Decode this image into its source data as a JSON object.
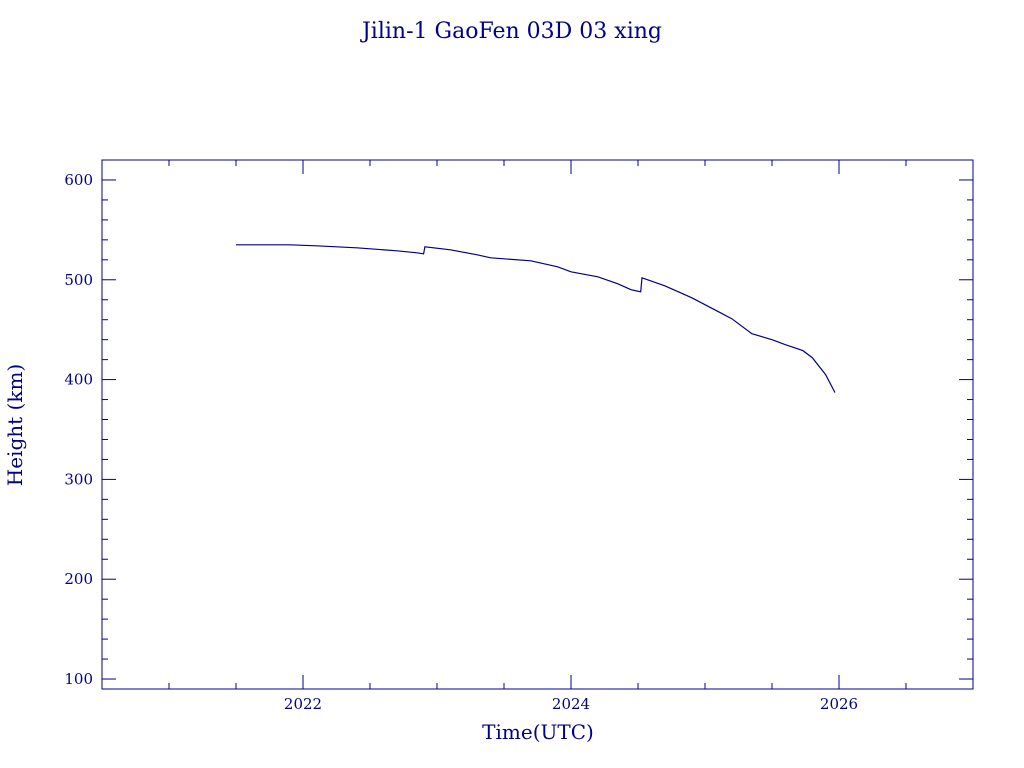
{
  "chart_data": {
    "type": "line",
    "title": "Jilin-1 GaoFen 03D 03 xing",
    "xlabel": "Time(UTC)",
    "ylabel": "Height (km)",
    "xlim": [
      2020.5,
      2027.0
    ],
    "ylim": [
      90,
      620
    ],
    "x_ticks": [
      2022,
      2024,
      2026
    ],
    "x_tick_labels": [
      "2022",
      "2024",
      "2026"
    ],
    "y_ticks": [
      100,
      200,
      300,
      400,
      500,
      600
    ],
    "y_tick_labels": [
      "100",
      "200",
      "300",
      "400",
      "500",
      "600"
    ],
    "grid": false,
    "colors": {
      "axes": "#00008b",
      "line": "#00008b",
      "background": "#ffffff"
    },
    "series": [
      {
        "x": [
          2021.5,
          2021.9,
          2022.1,
          2022.4,
          2022.7,
          2022.85,
          2022.9,
          2022.91,
          2023.1,
          2023.3,
          2023.4,
          2023.7,
          2023.9,
          2024.0,
          2024.2,
          2024.35,
          2024.45,
          2024.52,
          2024.53,
          2024.7,
          2024.9,
          2025.1,
          2025.2,
          2025.35,
          2025.5,
          2025.6,
          2025.73,
          2025.8,
          2025.9,
          2025.97
        ],
        "y": [
          535,
          535,
          534,
          532,
          529,
          527,
          526,
          533,
          530,
          525,
          522,
          519,
          513,
          508,
          503,
          496,
          490,
          488,
          502,
          494,
          482,
          468,
          461,
          446,
          440,
          435,
          429,
          422,
          405,
          387
        ]
      }
    ]
  }
}
